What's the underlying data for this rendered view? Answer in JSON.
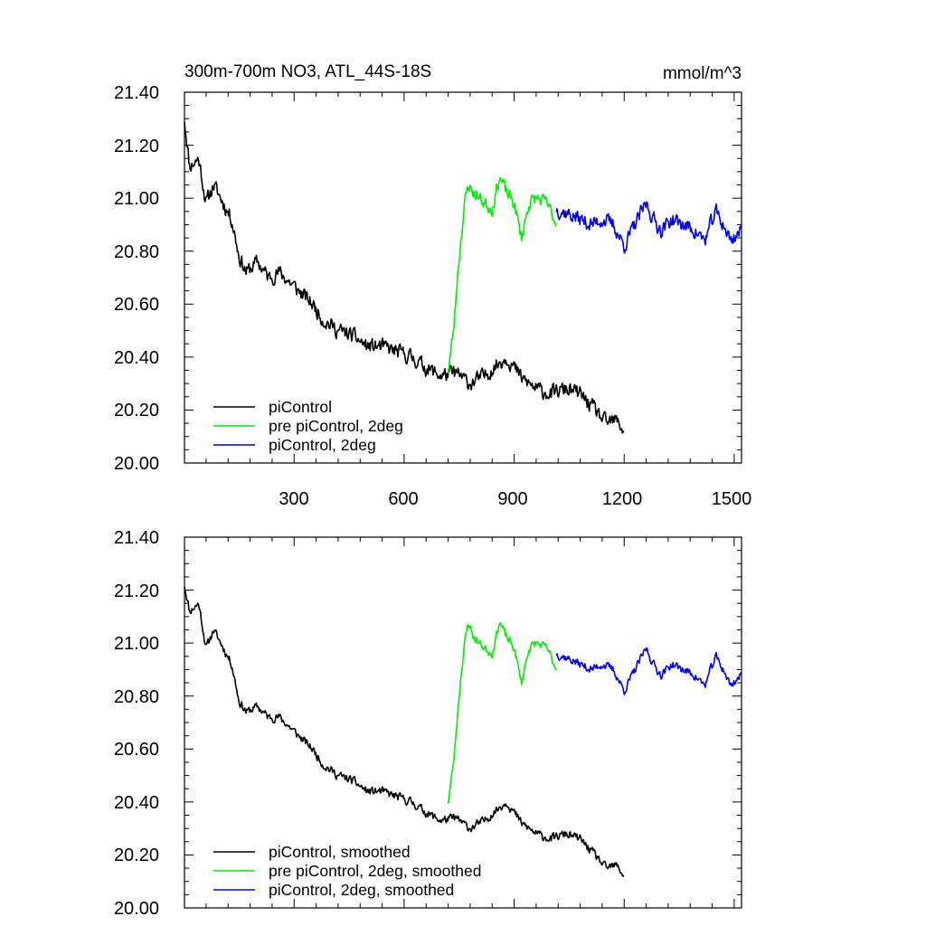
{
  "chart_data": [
    {
      "type": "line",
      "title": "300m-700m NO3, ATL_44S-18S",
      "units": "mmol/m^3",
      "xlim": [
        1,
        1520
      ],
      "ylim": [
        20.0,
        21.4
      ],
      "yticks": [
        "20.00",
        "20.20",
        "20.40",
        "20.60",
        "20.80",
        "21.00",
        "21.20",
        "21.40"
      ],
      "xticks": [
        "300",
        "600",
        "900",
        "1200",
        "1500"
      ],
      "grid": false,
      "legend_placement": "bottom-left",
      "series": [
        {
          "name": "piControl",
          "color": "#000000",
          "noise": 0.045,
          "seed": 11,
          "points": [
            [
              1,
              21.3
            ],
            [
              15,
              21.12
            ],
            [
              40,
              21.15
            ],
            [
              60,
              20.98
            ],
            [
              80,
              21.05
            ],
            [
              100,
              21.0
            ],
            [
              130,
              20.92
            ],
            [
              150,
              20.78
            ],
            [
              170,
              20.72
            ],
            [
              200,
              20.76
            ],
            [
              230,
              20.7
            ],
            [
              260,
              20.72
            ],
            [
              290,
              20.68
            ],
            [
              320,
              20.64
            ],
            [
              350,
              20.6
            ],
            [
              380,
              20.54
            ],
            [
              420,
              20.5
            ],
            [
              460,
              20.48
            ],
            [
              500,
              20.44
            ],
            [
              540,
              20.44
            ],
            [
              580,
              20.42
            ],
            [
              620,
              20.4
            ],
            [
              660,
              20.36
            ],
            [
              700,
              20.33
            ],
            [
              740,
              20.34
            ],
            [
              780,
              20.3
            ],
            [
              820,
              20.33
            ],
            [
              860,
              20.38
            ],
            [
              880,
              20.4
            ],
            [
              920,
              20.32
            ],
            [
              960,
              20.28
            ],
            [
              1000,
              20.26
            ],
            [
              1040,
              20.28
            ],
            [
              1080,
              20.26
            ],
            [
              1120,
              20.2
            ],
            [
              1150,
              20.15
            ],
            [
              1180,
              20.16
            ],
            [
              1200,
              20.12
            ]
          ]
        },
        {
          "name": "pre piControl, 2deg",
          "color": "#00ee00",
          "noise": 0.04,
          "seed": 23,
          "points": [
            [
              720,
              20.35
            ],
            [
              735,
              20.5
            ],
            [
              745,
              20.7
            ],
            [
              755,
              20.85
            ],
            [
              765,
              20.98
            ],
            [
              775,
              21.05
            ],
            [
              790,
              21.02
            ],
            [
              820,
              20.98
            ],
            [
              840,
              20.96
            ],
            [
              860,
              21.08
            ],
            [
              880,
              21.02
            ],
            [
              900,
              20.98
            ],
            [
              920,
              20.85
            ],
            [
              940,
              20.98
            ],
            [
              960,
              21.0
            ],
            [
              990,
              20.98
            ],
            [
              1015,
              20.9
            ]
          ]
        },
        {
          "name": "piControl, 2deg",
          "color": "#0000ee",
          "noise": 0.045,
          "seed": 37,
          "points": [
            [
              1015,
              20.96
            ],
            [
              1050,
              20.94
            ],
            [
              1080,
              20.92
            ],
            [
              1110,
              20.9
            ],
            [
              1140,
              20.92
            ],
            [
              1170,
              20.9
            ],
            [
              1200,
              20.82
            ],
            [
              1230,
              20.9
            ],
            [
              1260,
              20.98
            ],
            [
              1280,
              20.92
            ],
            [
              1300,
              20.88
            ],
            [
              1330,
              20.92
            ],
            [
              1360,
              20.9
            ],
            [
              1390,
              20.88
            ],
            [
              1420,
              20.84
            ],
            [
              1450,
              20.95
            ],
            [
              1470,
              20.9
            ],
            [
              1490,
              20.84
            ],
            [
              1520,
              20.88
            ]
          ]
        }
      ]
    },
    {
      "type": "line",
      "xlim": [
        1,
        1520
      ],
      "ylim": [
        20.0,
        21.4
      ],
      "yticks": [
        "20.00",
        "20.20",
        "20.40",
        "20.60",
        "20.80",
        "21.00",
        "21.20",
        "21.40"
      ],
      "grid": false,
      "legend_placement": "bottom-left",
      "series": [
        {
          "name": "piControl, smoothed",
          "color": "#000000",
          "noise": 0.025,
          "seed": 11,
          "points": [
            [
              1,
              21.22
            ],
            [
              15,
              21.12
            ],
            [
              40,
              21.15
            ],
            [
              60,
              20.98
            ],
            [
              80,
              21.05
            ],
            [
              100,
              21.0
            ],
            [
              130,
              20.92
            ],
            [
              150,
              20.78
            ],
            [
              170,
              20.74
            ],
            [
              200,
              20.76
            ],
            [
              230,
              20.72
            ],
            [
              260,
              20.72
            ],
            [
              290,
              20.68
            ],
            [
              320,
              20.64
            ],
            [
              350,
              20.6
            ],
            [
              380,
              20.54
            ],
            [
              420,
              20.5
            ],
            [
              460,
              20.48
            ],
            [
              500,
              20.44
            ],
            [
              540,
              20.44
            ],
            [
              580,
              20.42
            ],
            [
              620,
              20.4
            ],
            [
              660,
              20.36
            ],
            [
              700,
              20.33
            ],
            [
              740,
              20.34
            ],
            [
              780,
              20.3
            ],
            [
              820,
              20.33
            ],
            [
              860,
              20.38
            ],
            [
              880,
              20.4
            ],
            [
              920,
              20.32
            ],
            [
              960,
              20.28
            ],
            [
              1000,
              20.26
            ],
            [
              1040,
              20.28
            ],
            [
              1080,
              20.26
            ],
            [
              1120,
              20.2
            ],
            [
              1150,
              20.15
            ],
            [
              1180,
              20.16
            ],
            [
              1200,
              20.12
            ]
          ]
        },
        {
          "name": "pre piControl, 2deg, smoothed",
          "color": "#00ee00",
          "noise": 0.025,
          "seed": 23,
          "points": [
            [
              720,
              20.4
            ],
            [
              735,
              20.55
            ],
            [
              745,
              20.72
            ],
            [
              755,
              20.88
            ],
            [
              765,
              21.0
            ],
            [
              775,
              21.08
            ],
            [
              790,
              21.02
            ],
            [
              820,
              20.98
            ],
            [
              840,
              20.96
            ],
            [
              860,
              21.08
            ],
            [
              880,
              21.02
            ],
            [
              900,
              20.98
            ],
            [
              920,
              20.85
            ],
            [
              940,
              20.98
            ],
            [
              960,
              21.0
            ],
            [
              990,
              20.98
            ],
            [
              1015,
              20.9
            ]
          ]
        },
        {
          "name": "piControl, 2deg, smoothed",
          "color": "#0000ee",
          "noise": 0.025,
          "seed": 37,
          "points": [
            [
              1015,
              20.96
            ],
            [
              1050,
              20.94
            ],
            [
              1080,
              20.92
            ],
            [
              1110,
              20.9
            ],
            [
              1140,
              20.92
            ],
            [
              1170,
              20.9
            ],
            [
              1200,
              20.82
            ],
            [
              1230,
              20.9
            ],
            [
              1260,
              20.98
            ],
            [
              1280,
              20.92
            ],
            [
              1300,
              20.88
            ],
            [
              1330,
              20.92
            ],
            [
              1360,
              20.9
            ],
            [
              1390,
              20.88
            ],
            [
              1420,
              20.84
            ],
            [
              1450,
              20.95
            ],
            [
              1470,
              20.9
            ],
            [
              1490,
              20.84
            ],
            [
              1520,
              20.88
            ]
          ]
        }
      ]
    }
  ]
}
